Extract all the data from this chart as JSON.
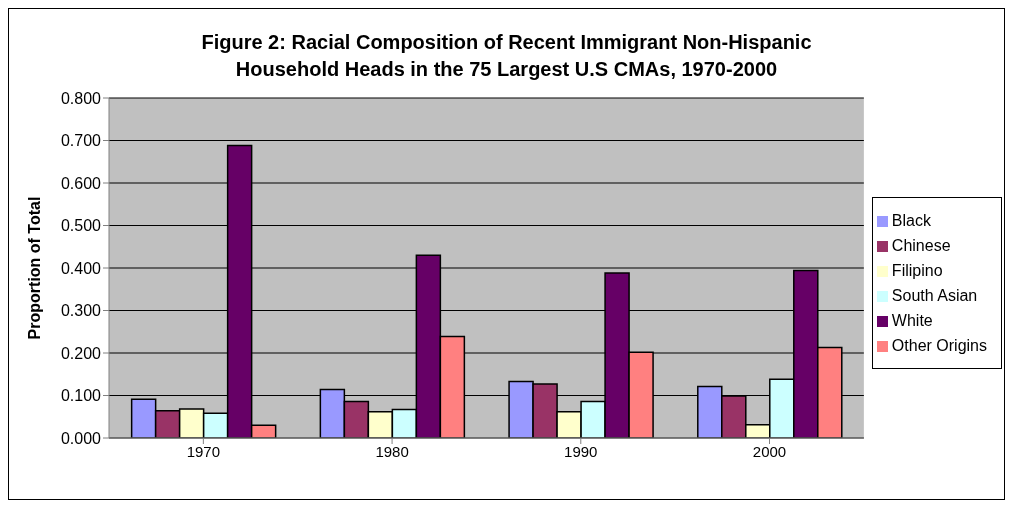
{
  "chart_data": {
    "type": "bar",
    "title": "Figure 2: Racial Composition of Recent Immigrant Non-Hispanic Household Heads in the 75 Largest U.S CMAs, 1970-2000",
    "ylabel": "Proportion of Total",
    "categories": [
      "1970",
      "1980",
      "1990",
      "2000"
    ],
    "series": [
      {
        "name": "Black",
        "color": "#9999ff",
        "values": [
          0.091,
          0.114,
          0.133,
          0.121
        ]
      },
      {
        "name": "Chinese",
        "color": "#993366",
        "values": [
          0.064,
          0.086,
          0.127,
          0.099
        ]
      },
      {
        "name": "Filipino",
        "color": "#ffffcc",
        "values": [
          0.068,
          0.062,
          0.062,
          0.031
        ]
      },
      {
        "name": "South Asian",
        "color": "#ccffff",
        "values": [
          0.058,
          0.067,
          0.086,
          0.138
        ]
      },
      {
        "name": "White",
        "color": "#660066",
        "values": [
          0.688,
          0.43,
          0.388,
          0.394
        ]
      },
      {
        "name": "Other Origins",
        "color": "#ff8080",
        "values": [
          0.03,
          0.239,
          0.202,
          0.213
        ]
      }
    ],
    "ylim": [
      0,
      0.8
    ],
    "yticks": [
      {
        "value": 0,
        "label": "0.000"
      },
      {
        "value": 0.1,
        "label": "0.100"
      },
      {
        "value": 0.2,
        "label": "0.200"
      },
      {
        "value": 0.3,
        "label": "0.300"
      },
      {
        "value": 0.4,
        "label": "0.400"
      },
      {
        "value": 0.5,
        "label": "0.500"
      },
      {
        "value": 0.6,
        "label": "0.600"
      },
      {
        "value": 0.7,
        "label": "0.700"
      },
      {
        "value": 0.8,
        "label": "0.800"
      }
    ],
    "grid": "y",
    "legend": "right"
  }
}
